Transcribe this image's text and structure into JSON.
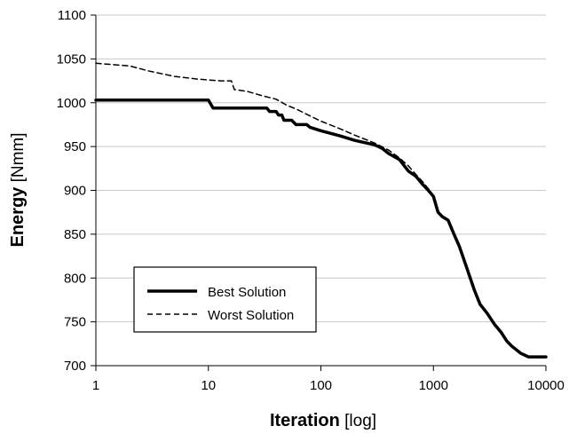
{
  "chart_data": {
    "type": "line",
    "xscale": "log",
    "xlim": [
      1,
      10000
    ],
    "ylim": [
      700,
      1100
    ],
    "grid": {
      "horizontal": true,
      "vertical": false
    },
    "legend_position": "lower-left",
    "xlabel_bold": "Iteration",
    "xlabel_rest": " [log]",
    "ylabel_bold": "Energy",
    "ylabel_rest": " [Nmm]",
    "x_ticks": [
      1,
      10,
      100,
      1000,
      10000
    ],
    "x_tick_labels": [
      "1",
      "10",
      "100",
      "1000",
      "10000"
    ],
    "y_ticks": [
      700,
      750,
      800,
      850,
      900,
      950,
      1000,
      1050,
      1100
    ],
    "y_tick_labels": [
      "700",
      "750",
      "800",
      "850",
      "900",
      "950",
      "1000",
      "1050",
      "1100"
    ],
    "series": [
      {
        "name": "Best Solution",
        "style": "solid",
        "color": "#000000",
        "points": [
          [
            1,
            1003
          ],
          [
            10,
            1003
          ],
          [
            11,
            994
          ],
          [
            33,
            994
          ],
          [
            35,
            990
          ],
          [
            40,
            990
          ],
          [
            42,
            986
          ],
          [
            45,
            986
          ],
          [
            47,
            980
          ],
          [
            55,
            980
          ],
          [
            60,
            975
          ],
          [
            75,
            975
          ],
          [
            80,
            972
          ],
          [
            100,
            968
          ],
          [
            150,
            962
          ],
          [
            200,
            957
          ],
          [
            300,
            952
          ],
          [
            350,
            948
          ],
          [
            400,
            942
          ],
          [
            500,
            935
          ],
          [
            600,
            922
          ],
          [
            700,
            916
          ],
          [
            800,
            907
          ],
          [
            900,
            900
          ],
          [
            1000,
            893
          ],
          [
            1100,
            875
          ],
          [
            1200,
            870
          ],
          [
            1350,
            866
          ],
          [
            1500,
            852
          ],
          [
            1700,
            836
          ],
          [
            2000,
            810
          ],
          [
            2300,
            787
          ],
          [
            2600,
            770
          ],
          [
            3000,
            760
          ],
          [
            3500,
            747
          ],
          [
            4000,
            738
          ],
          [
            4500,
            728
          ],
          [
            5000,
            722
          ],
          [
            6000,
            714
          ],
          [
            7000,
            710
          ],
          [
            10000,
            710
          ]
        ]
      },
      {
        "name": "Worst Solution",
        "style": "dashed",
        "color": "#000000",
        "points": [
          [
            1,
            1045
          ],
          [
            2,
            1042
          ],
          [
            3,
            1036
          ],
          [
            5,
            1030
          ],
          [
            8,
            1027
          ],
          [
            10,
            1026
          ],
          [
            13,
            1025
          ],
          [
            16,
            1025
          ],
          [
            17,
            1015
          ],
          [
            22,
            1013
          ],
          [
            30,
            1008
          ],
          [
            40,
            1004
          ],
          [
            50,
            997
          ],
          [
            60,
            993
          ],
          [
            80,
            985
          ],
          [
            100,
            979
          ],
          [
            150,
            970
          ],
          [
            200,
            963
          ],
          [
            300,
            954
          ],
          [
            400,
            946
          ],
          [
            500,
            937
          ],
          [
            600,
            928
          ],
          [
            700,
            918
          ],
          [
            800,
            910
          ],
          [
            900,
            902
          ],
          [
            1000,
            894
          ],
          [
            1100,
            876
          ],
          [
            1200,
            871
          ],
          [
            1350,
            866
          ],
          [
            1500,
            852
          ],
          [
            1700,
            836
          ],
          [
            2000,
            810
          ],
          [
            2300,
            787
          ],
          [
            2600,
            770
          ],
          [
            3000,
            760
          ],
          [
            3500,
            747
          ],
          [
            4000,
            738
          ],
          [
            4500,
            728
          ],
          [
            5000,
            722
          ],
          [
            6000,
            714
          ],
          [
            7000,
            710
          ],
          [
            10000,
            710
          ]
        ]
      }
    ]
  }
}
